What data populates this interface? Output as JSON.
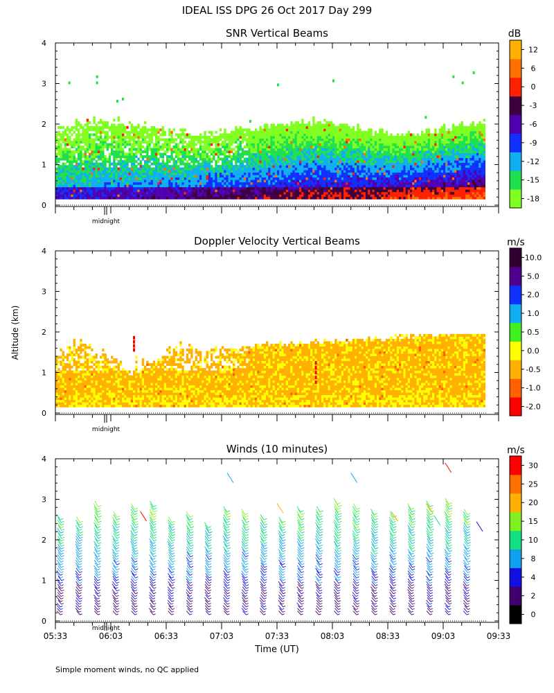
{
  "title": "IDEAL ISS DPG  26 Oct 2017 Day 299",
  "y_axis_label": "Altitude (km)",
  "x_axis_label": "Time (UT)",
  "footnote": "Simple moment winds, no QC applied",
  "midnight_label": "midnight",
  "y_ticks": [
    "0",
    "1",
    "2",
    "3",
    "4"
  ],
  "x_ticks": [
    "05:33",
    "06:03",
    "06:33",
    "07:03",
    "07:33",
    "08:03",
    "08:33",
    "09:03",
    "09:33"
  ],
  "colors": {
    "snr": [
      "#80ff20",
      "#20e050",
      "#10b0f0",
      "#1030ff",
      "#5000b0",
      "#400040",
      "#ff2000",
      "#ff7000",
      "#ffb000"
    ],
    "doppler": [
      "#ff0000",
      "#ff6000",
      "#ffb000",
      "#ffff00",
      "#40f020",
      "#10b0f0",
      "#1030ff",
      "#500090",
      "#300030"
    ],
    "winds": [
      "#000000",
      "#400070",
      "#1010e0",
      "#10a0f0",
      "#10e080",
      "#80f020",
      "#ffb000",
      "#ff7000",
      "#ff0000"
    ]
  },
  "chart_data": [
    {
      "type": "heatmap",
      "title": "SNR Vertical Beams",
      "xlabel": "",
      "ylabel": "Altitude (km)",
      "ylim": [
        0,
        4
      ],
      "xlim": [
        "05:33",
        "09:33"
      ],
      "colorbar": {
        "unit": "dB",
        "labels": [
          "-18",
          "-15",
          "-12",
          "-9",
          "-6",
          "-3",
          "0",
          "6",
          "12"
        ]
      }
    },
    {
      "type": "heatmap",
      "title": "Doppler Velocity Vertical Beams",
      "xlabel": "",
      "ylabel": "Altitude (km)",
      "ylim": [
        0,
        4
      ],
      "xlim": [
        "05:33",
        "09:33"
      ],
      "colorbar": {
        "unit": "m/s",
        "labels": [
          "-2.0",
          "-1.0",
          "-0.5",
          "0.0",
          "0.5",
          "1.0",
          "2.0",
          "5.0",
          "10.0"
        ]
      }
    },
    {
      "type": "scatter",
      "title": "Winds (10 minutes)",
      "xlabel": "Time (UT)",
      "ylabel": "Altitude (km)",
      "ylim": [
        0,
        4
      ],
      "xlim": [
        "05:33",
        "09:33"
      ],
      "colorbar": {
        "unit": "m/s",
        "labels": [
          "0",
          "2",
          "4",
          "8",
          "10",
          "15",
          "20",
          "25",
          "30"
        ]
      }
    }
  ]
}
